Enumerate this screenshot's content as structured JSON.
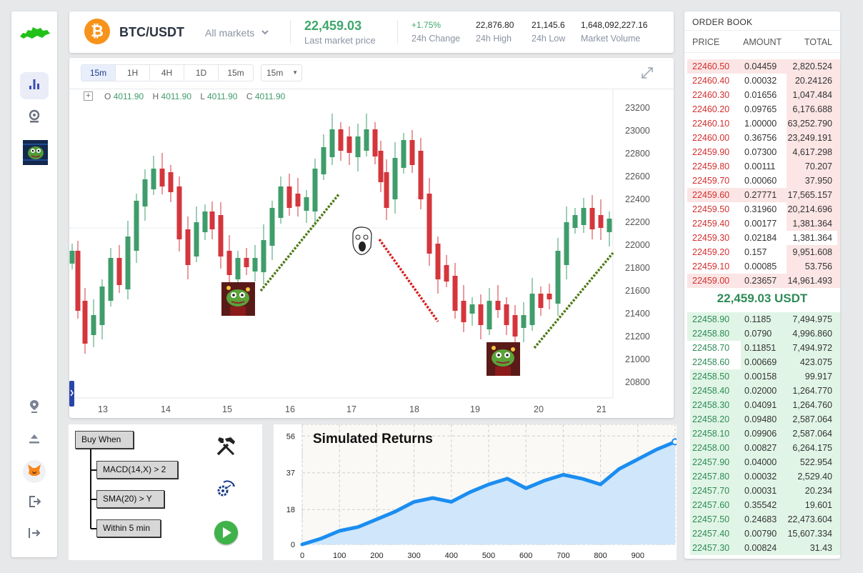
{
  "header": {
    "pair": "BTC/USDT",
    "coin_symbol": "₿",
    "market_select": "All markets",
    "last_price": "22,459.03",
    "last_price_label": "Last market price",
    "stats": [
      {
        "value": "+1.75%",
        "label": "24h Change"
      },
      {
        "value": "22,876.80",
        "label": "24h High"
      },
      {
        "value": "21,145.6",
        "label": "24h Low"
      },
      {
        "value": "1,648,092,227.16",
        "label": "Market Volume"
      }
    ]
  },
  "chart": {
    "timeframes": [
      "15m",
      "1H",
      "4H",
      "1D",
      "15m"
    ],
    "selected_timeframe": "15m",
    "interval_select": "15m",
    "ohlc": {
      "o_label": "O",
      "o": "4011.90",
      "h_label": "H",
      "h": "4011.90",
      "l_label": "L",
      "l": "4011.90",
      "c_label": "C",
      "c": "4011.90"
    },
    "y_ticks": [
      "23200",
      "23000",
      "22800",
      "22600",
      "22400",
      "22200",
      "22000",
      "21800",
      "21600",
      "21400",
      "21200",
      "21000",
      "20800"
    ],
    "x_ticks": [
      "13",
      "14",
      "15",
      "16",
      "17",
      "18",
      "19",
      "20",
      "21"
    ],
    "colors": {
      "up": "#3f9d6b",
      "down": "#d4363c",
      "trend_up": "#4f7a14",
      "trend_down": "#d81f1f"
    }
  },
  "builder": {
    "root": "Buy When",
    "conditions": [
      "MACD(14,X) > 2",
      "SMA(20) > Y",
      "Within 5 min"
    ]
  },
  "returns_chart": {
    "title": "Simulated Returns",
    "y_ticks": [
      "56",
      "37",
      "18",
      "0"
    ],
    "x_ticks": [
      "0",
      "100",
      "200",
      "300",
      "400",
      "500",
      "600",
      "700",
      "800",
      "900"
    ]
  },
  "chart_data": {
    "type": "area",
    "title": "Simulated Returns",
    "x": [
      0,
      50,
      100,
      150,
      200,
      250,
      300,
      350,
      400,
      450,
      500,
      550,
      600,
      650,
      700,
      750,
      800,
      850,
      900,
      950,
      1000
    ],
    "y": [
      0,
      3,
      7,
      9,
      13,
      17,
      22,
      24,
      22,
      27,
      31,
      34,
      29,
      33,
      36,
      34,
      31,
      39,
      44,
      49,
      53
    ],
    "xlim": [
      0,
      1000
    ],
    "ylim": [
      0,
      62
    ],
    "grid": true,
    "colors": {
      "line": "#1b8df0",
      "fill": "#cfe6fb"
    }
  },
  "orderbook": {
    "title": "ORDER BOOK",
    "columns": [
      "PRICE",
      "AMOUNT",
      "TOTAL"
    ],
    "asks": [
      {
        "price": "22460.50",
        "amount": "0.04459",
        "total": "2,820.524",
        "depth": 1.0
      },
      {
        "price": "22460.40",
        "amount": "0.00032",
        "total": "20.24126",
        "depth": 0.35
      },
      {
        "price": "22460.30",
        "amount": "0.01656",
        "total": "1,047.484",
        "depth": 0.35
      },
      {
        "price": "22460.20",
        "amount": "0.09765",
        "total": "6,176.688",
        "depth": 0.35
      },
      {
        "price": "22460.10",
        "amount": "1.00000",
        "total": "63,252.790",
        "depth": 0.35
      },
      {
        "price": "22460.00",
        "amount": "0.36756",
        "total": "23,249.191",
        "depth": 0.35
      },
      {
        "price": "22459.90",
        "amount": "0.07300",
        "total": "4,617.298",
        "depth": 0.35
      },
      {
        "price": "22459.80",
        "amount": "0.00111",
        "total": "70.207",
        "depth": 0.35
      },
      {
        "price": "22459.70",
        "amount": "0.00060",
        "total": "37.950",
        "depth": 0.35
      },
      {
        "price": "22459.60",
        "amount": "0.27771",
        "total": "17,565.157",
        "depth": 1.0
      },
      {
        "price": "22459.50",
        "amount": "0.31960",
        "total": "20,214.696",
        "depth": 0.35
      },
      {
        "price": "22459.40",
        "amount": "0.00177",
        "total": "1,381.364",
        "depth": 0.35
      },
      {
        "price": "22459.30",
        "amount": "0.02184",
        "total": "1,381.364",
        "depth": 0.02
      },
      {
        "price": "22459.20",
        "amount": "0.157",
        "total": "9,951.608",
        "depth": 0.35
      },
      {
        "price": "22459.10",
        "amount": "0.00085",
        "total": "53.756",
        "depth": 0.35
      },
      {
        "price": "22459.00",
        "amount": "0.23657",
        "total": "14,961.493",
        "depth": 1.0
      }
    ],
    "mid_price": "22,459.03 USDT",
    "bids": [
      {
        "price": "22458.90",
        "amount": "0.1185",
        "total": "7,494.975",
        "depth": 1.0
      },
      {
        "price": "22458.80",
        "amount": "0.0790",
        "total": "4,996.860",
        "depth": 1.0
      },
      {
        "price": "22458.70",
        "amount": "0.11851",
        "total": "7,494.972",
        "depth": 0.65
      },
      {
        "price": "22458.60",
        "amount": "0.00669",
        "total": "423.075",
        "depth": 0.65
      },
      {
        "price": "22458.50",
        "amount": "0.00158",
        "total": "99.917",
        "depth": 0.98
      },
      {
        "price": "22458.40",
        "amount": "0.02000",
        "total": "1,264.770",
        "depth": 0.98
      },
      {
        "price": "22458.30",
        "amount": "0.04091",
        "total": "1,264.760",
        "depth": 0.98
      },
      {
        "price": "22458.20",
        "amount": "0.09480",
        "total": "2,587.064",
        "depth": 0.98
      },
      {
        "price": "22458.10",
        "amount": "0.09906",
        "total": "2,587.064",
        "depth": 0.98
      },
      {
        "price": "22458.00",
        "amount": "0.00827",
        "total": "6,264.175",
        "depth": 0.98
      },
      {
        "price": "22457.90",
        "amount": "0.04000",
        "total": "522.954",
        "depth": 0.98
      },
      {
        "price": "22457.80",
        "amount": "0.00032",
        "total": "2,529.40",
        "depth": 0.98
      },
      {
        "price": "22457.70",
        "amount": "0.00031",
        "total": "20.234",
        "depth": 0.98
      },
      {
        "price": "22457.60",
        "amount": "0.35542",
        "total": "19.601",
        "depth": 0.98
      },
      {
        "price": "22457.50",
        "amount": "0.24683",
        "total": "22,473.604",
        "depth": 0.98
      },
      {
        "price": "22457.40",
        "amount": "0.00790",
        "total": "15,607.334",
        "depth": 0.98
      },
      {
        "price": "22457.30",
        "amount": "0.00824",
        "total": "31.43",
        "depth": 0.98
      }
    ],
    "colors": {
      "ask": "#d32f2f",
      "bid": "#2e8b57",
      "ask_bg": "#fce5e5",
      "bid_bg": "#e1f5e6"
    }
  }
}
